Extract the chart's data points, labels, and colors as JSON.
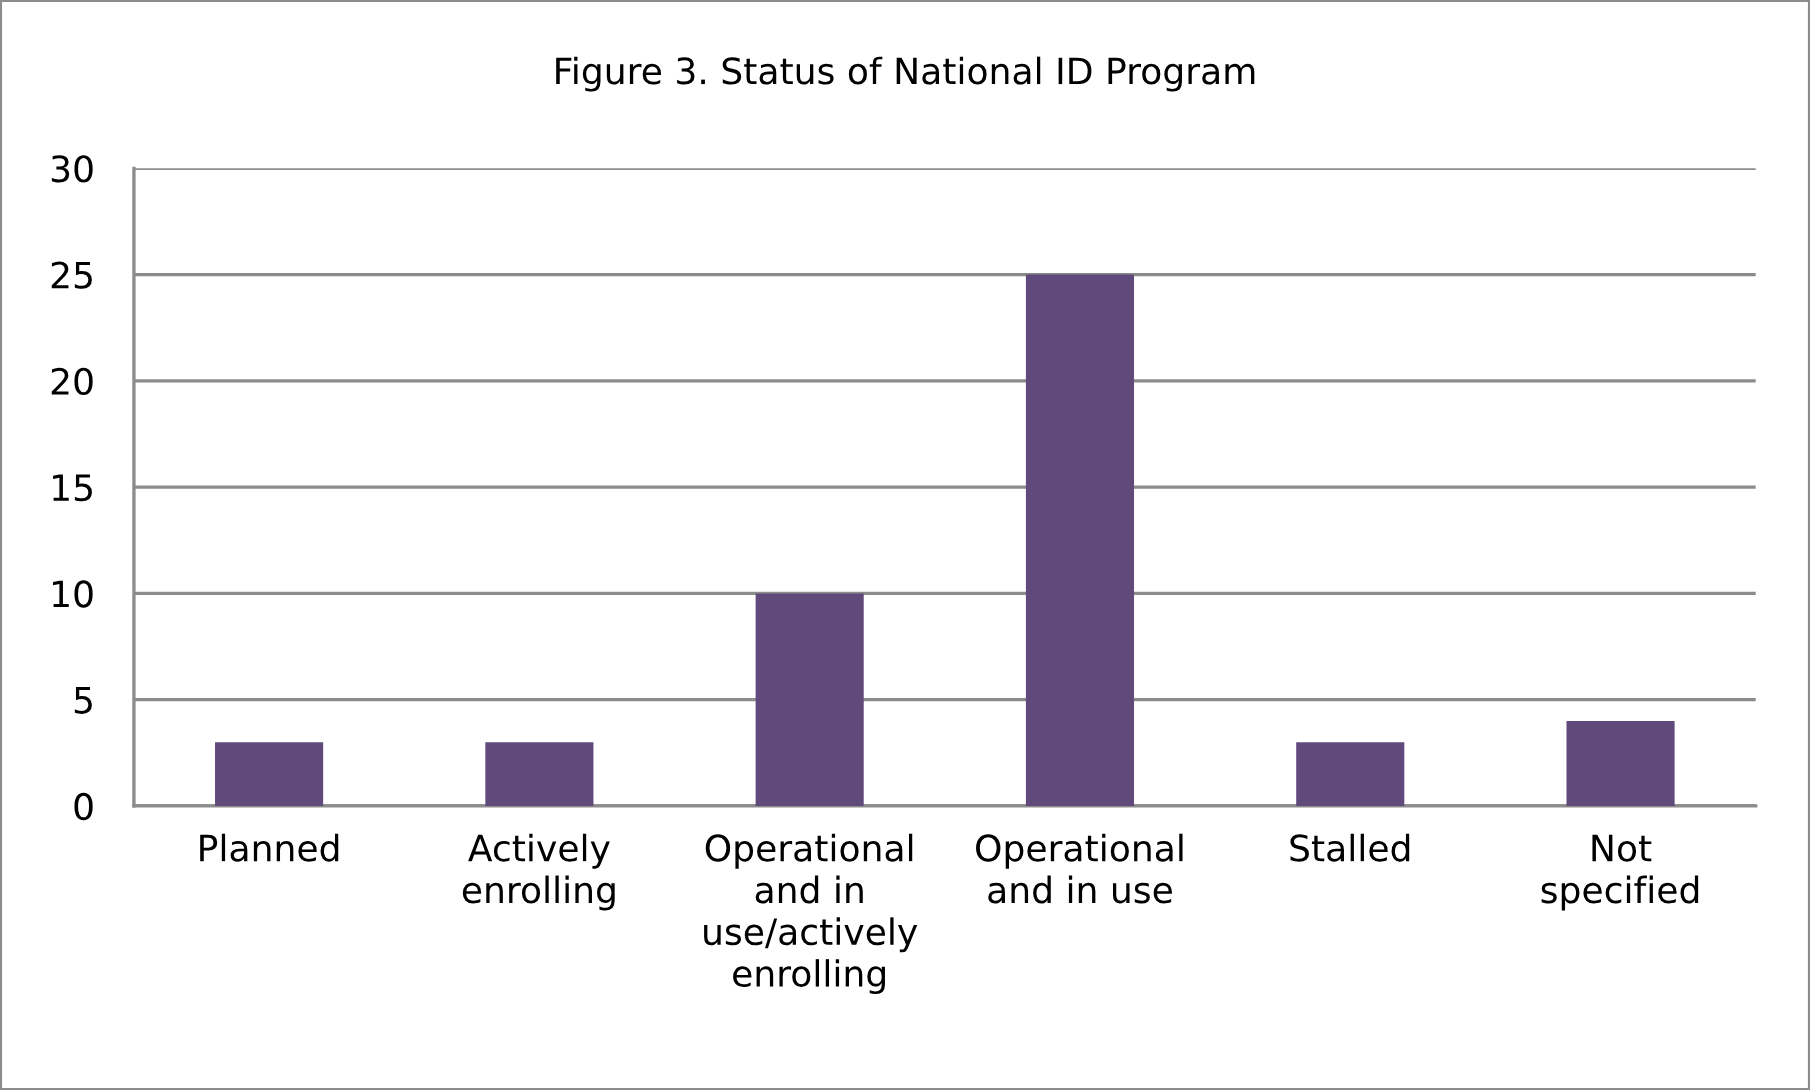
{
  "chart_data": {
    "type": "bar",
    "title": "Figure 3. Status of National ID Program",
    "categories": [
      "Planned",
      "Actively enrolling",
      "Operational and in use/actively enrolling",
      "Operational and in use",
      "Stalled",
      "Not specified"
    ],
    "values": [
      3,
      3,
      10,
      25,
      3,
      4
    ],
    "color": "#604a7b",
    "ylim": [
      0,
      30
    ],
    "yticks": [
      0,
      5,
      10,
      15,
      20,
      25,
      30
    ],
    "grid": "y",
    "legend": false
  }
}
